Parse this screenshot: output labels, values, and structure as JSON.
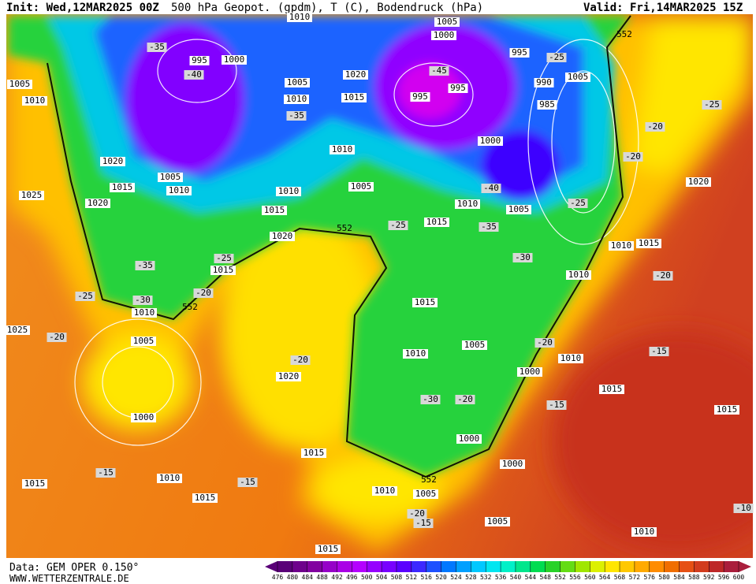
{
  "header": {
    "init": "Init: Wed,12MAR2025 00Z",
    "title": "500 hPa Geopot. (gpdm), T (C), Bodendruck (hPa)",
    "valid": "Valid: Fri,14MAR2025 15Z"
  },
  "footer": {
    "data": "Data: GEM OPER 0.150°",
    "site": "WWW.WETTERZENTRALE.DE"
  },
  "map": {
    "isobar_labels": [
      "1010",
      "1005",
      "1000",
      "995",
      "1000",
      "995",
      "1005",
      "1010",
      "1005",
      "1010",
      "1020",
      "1015",
      "995",
      "995",
      "990",
      "1005",
      "985",
      "1000",
      "1010",
      "1020",
      "1005",
      "1010",
      "1015",
      "1010",
      "1005",
      "1025",
      "1020",
      "1015",
      "1010",
      "1005",
      "1015",
      "1020",
      "1010",
      "1015",
      "1020",
      "1015",
      "1010",
      "1010",
      "1015",
      "1025",
      "1005",
      "1005",
      "1010",
      "1000",
      "1010",
      "1020",
      "1015",
      "1015",
      "1000",
      "1000",
      "1015",
      "1000",
      "1010",
      "1015",
      "1015",
      "1010",
      "1005",
      "1005",
      "1010",
      "1015"
    ],
    "temperature_labels": [
      "-35",
      "-40",
      "-35",
      "-45",
      "-25",
      "-25",
      "-20",
      "-20",
      "-40",
      "-25",
      "-25",
      "-35",
      "-30",
      "-35",
      "-25",
      "-20",
      "-25",
      "-30",
      "-20",
      "-20",
      "-20",
      "-15",
      "-20",
      "-30",
      "-20",
      "-15",
      "-15",
      "-15",
      "-20",
      "-15",
      "-10"
    ],
    "contour_labels": [
      "552",
      "552",
      "552",
      "552"
    ]
  },
  "colorbar": {
    "ticks": [
      476,
      480,
      484,
      488,
      492,
      496,
      500,
      504,
      508,
      512,
      516,
      520,
      524,
      528,
      532,
      536,
      540,
      544,
      548,
      552,
      556,
      560,
      564,
      568,
      572,
      576,
      580,
      584,
      588,
      592,
      596,
      600
    ],
    "colors": [
      "#5a0078",
      "#6e008c",
      "#8200a0",
      "#9600c8",
      "#aa00e6",
      "#b400ff",
      "#9600ff",
      "#7800ff",
      "#5a00ff",
      "#3c28ff",
      "#1e50ff",
      "#0078ff",
      "#00a0ff",
      "#00c8ff",
      "#00e6f0",
      "#00f0c8",
      "#00e68c",
      "#00dc50",
      "#28d228",
      "#64dc14",
      "#a0e600",
      "#dcf000",
      "#ffe600",
      "#ffc800",
      "#ffaa00",
      "#ff8c00",
      "#f06e00",
      "#e65014",
      "#d23c1e",
      "#be2828",
      "#aa1e3c"
    ]
  }
}
